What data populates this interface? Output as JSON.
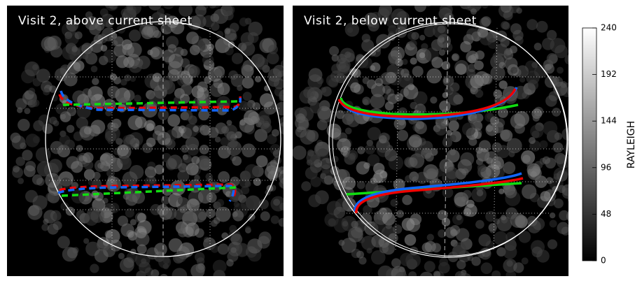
{
  "panels": [
    {
      "title": "Visit 2, above current sheet"
    },
    {
      "title": "Visit 2, below current sheet"
    }
  ],
  "colorbar": {
    "label": "RAYLEIGH",
    "lim": [
      0,
      240
    ],
    "ticks": [
      0,
      48,
      96,
      144,
      192,
      240
    ]
  }
}
